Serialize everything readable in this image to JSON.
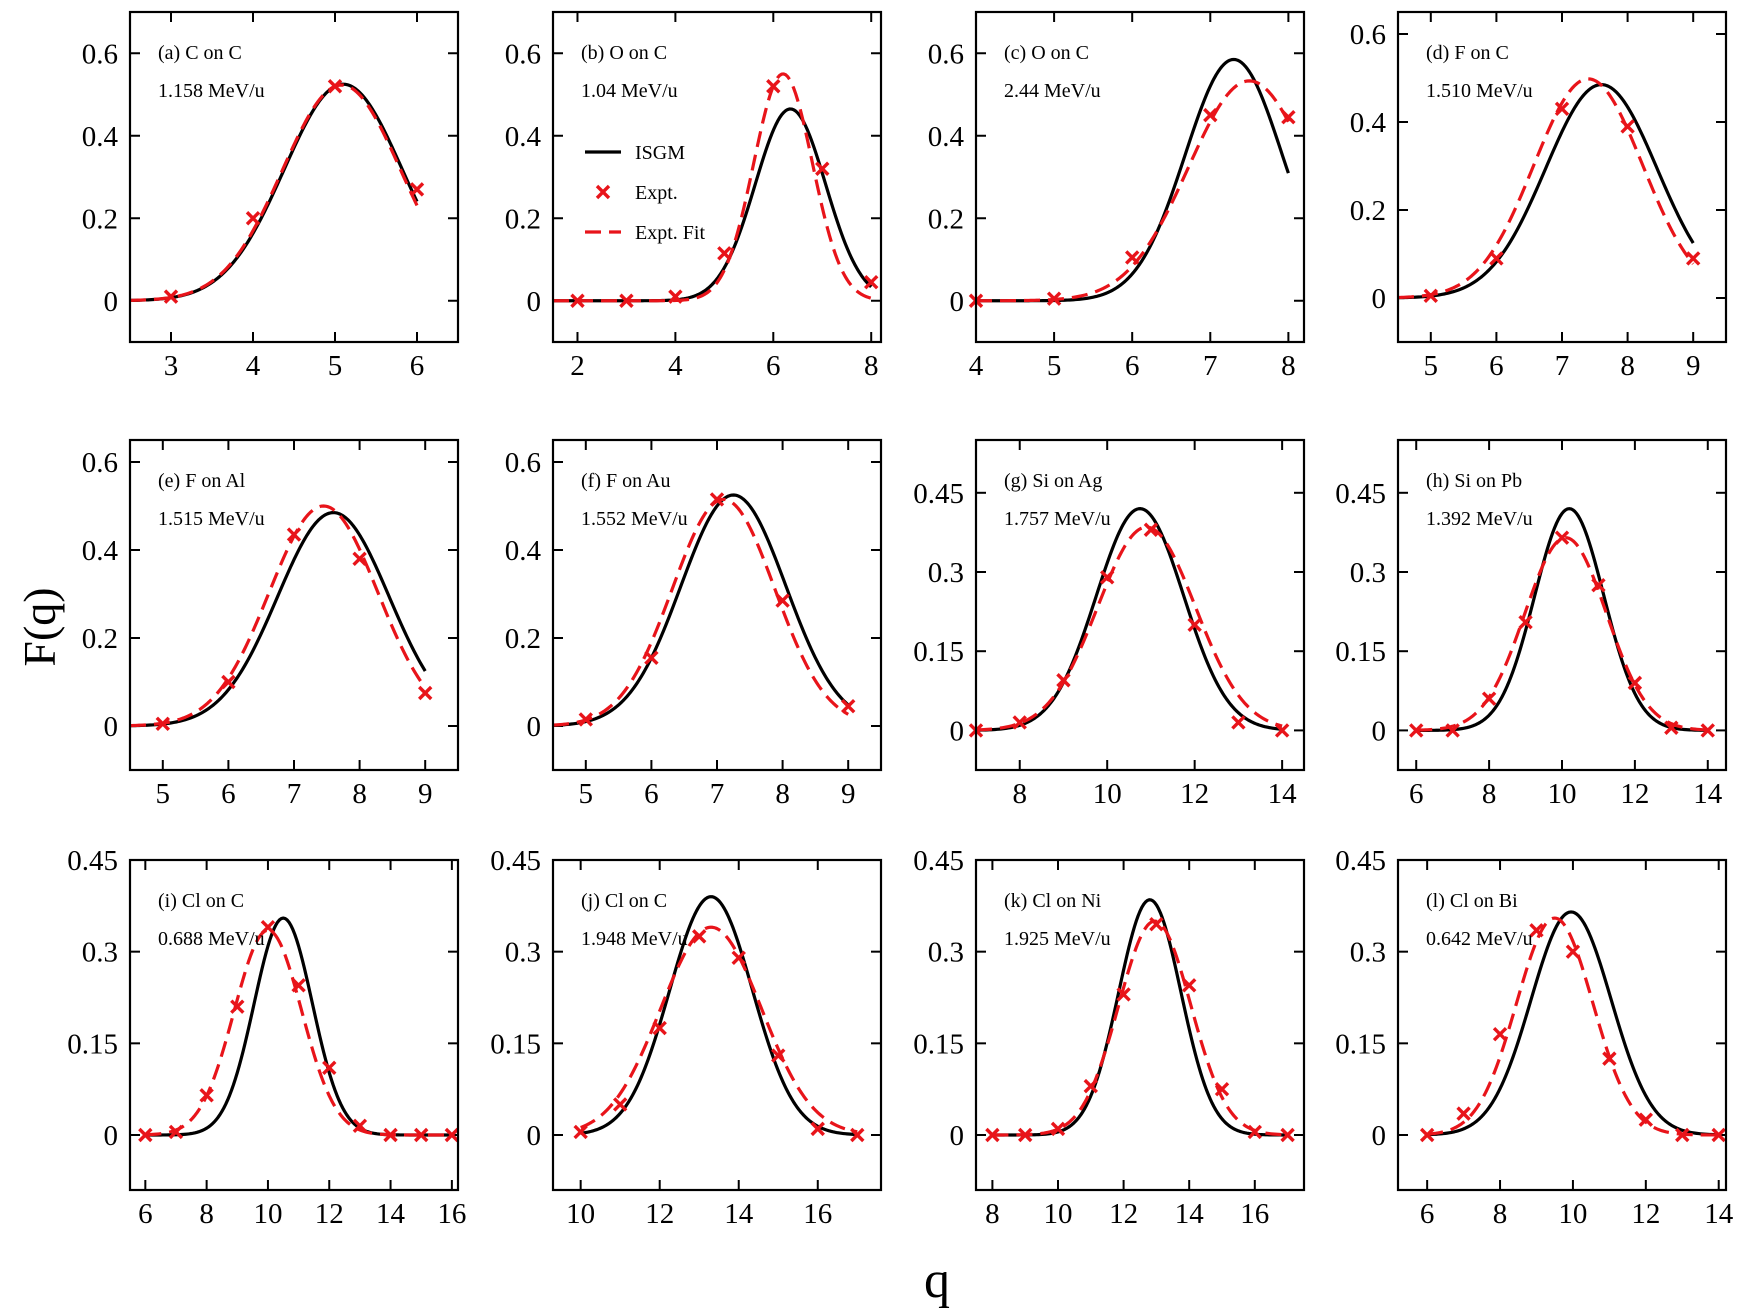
{
  "figure": {
    "ylabel": "F(q)",
    "xlabel": "q",
    "legend": {
      "isgm": "ISGM",
      "expt": "Expt.",
      "fit": "Expt. Fit"
    },
    "colors": {
      "isgm": "#000000",
      "expt": "#e8141a",
      "fit": "#e8141a"
    }
  },
  "chart_data": [
    {
      "type": "line",
      "id": "a",
      "title": "(a) C on C",
      "subtitle": "1.158 MeV/u",
      "xlim": [
        2.5,
        6.5
      ],
      "ylim": [
        -0.1,
        0.7
      ],
      "xticks": [
        3,
        4,
        5,
        6
      ],
      "yticks": [
        0,
        0.2,
        0.4,
        0.6
      ],
      "ytick_labels": [
        "0",
        "0.2",
        "0.4",
        "0.6"
      ],
      "isgm": {
        "mu": 5.1,
        "sigma": 0.72,
        "amp": 0.525,
        "x_range": [
          2.5,
          6.0
        ]
      },
      "fit": {
        "mu": 5.08,
        "sigma": 0.72,
        "amp": 0.523,
        "x_range": [
          2.5,
          6.0
        ]
      },
      "expt": {
        "x": [
          3,
          4,
          5,
          6
        ],
        "y": [
          0.01,
          0.2,
          0.52,
          0.27
        ]
      }
    },
    {
      "type": "line",
      "id": "b",
      "title": "(b) O on C",
      "subtitle": "1.04 MeV/u",
      "legend": true,
      "xlim": [
        1.5,
        8.2
      ],
      "ylim": [
        -0.1,
        0.7
      ],
      "xticks": [
        2,
        4,
        6,
        8
      ],
      "yticks": [
        0,
        0.2,
        0.4,
        0.6
      ],
      "ytick_labels": [
        "0",
        "0.2",
        "0.4",
        "0.6"
      ],
      "isgm": {
        "mu": 6.35,
        "sigma": 0.72,
        "amp": 0.465,
        "x_range": [
          1.5,
          8.0
        ]
      },
      "fit": {
        "mu": 6.2,
        "sigma": 0.6,
        "amp": 0.55,
        "x_range": [
          1.5,
          8.0
        ]
      },
      "expt": {
        "x": [
          2,
          3,
          4,
          5,
          6,
          7,
          8
        ],
        "y": [
          0,
          0,
          0.01,
          0.115,
          0.52,
          0.32,
          0.045
        ]
      }
    },
    {
      "type": "line",
      "id": "c",
      "title": "(c) O on C",
      "subtitle": "2.44 MeV/u",
      "xlim": [
        4,
        8.2
      ],
      "ylim": [
        -0.1,
        0.7
      ],
      "xticks": [
        4,
        5,
        6,
        7,
        8
      ],
      "yticks": [
        0,
        0.2,
        0.4,
        0.6
      ],
      "ytick_labels": [
        "0",
        "0.2",
        "0.4",
        "0.6"
      ],
      "isgm": {
        "mu": 7.3,
        "sigma": 0.62,
        "amp": 0.585,
        "x_range": [
          4,
          8.0
        ]
      },
      "fit": {
        "mu": 7.5,
        "sigma": 0.78,
        "amp": 0.533,
        "x_range": [
          4,
          8.0
        ]
      },
      "expt": {
        "x": [
          4,
          5,
          6,
          7,
          8
        ],
        "y": [
          0,
          0.005,
          0.105,
          0.45,
          0.445
        ]
      }
    },
    {
      "type": "line",
      "id": "d",
      "title": "(d) F on C",
      "subtitle": "1.510 MeV/u",
      "xlim": [
        4.5,
        9.5
      ],
      "ylim": [
        -0.1,
        0.65
      ],
      "xticks": [
        5,
        6,
        7,
        8,
        9
      ],
      "yticks": [
        0,
        0.2,
        0.4,
        0.6
      ],
      "ytick_labels": [
        "0",
        "0.2",
        "0.4",
        "0.6"
      ],
      "isgm": {
        "mu": 7.6,
        "sigma": 0.85,
        "amp": 0.485,
        "x_range": [
          4.5,
          9.0
        ]
      },
      "fit": {
        "mu": 7.4,
        "sigma": 0.83,
        "amp": 0.498,
        "x_range": [
          4.5,
          9.0
        ]
      },
      "expt": {
        "x": [
          5,
          6,
          7,
          8,
          9
        ],
        "y": [
          0.005,
          0.09,
          0.43,
          0.39,
          0.09
        ]
      }
    },
    {
      "type": "line",
      "id": "e",
      "title": "(e) F on Al",
      "subtitle": "1.515 MeV/u",
      "xlim": [
        4.5,
        9.5
      ],
      "ylim": [
        -0.1,
        0.65
      ],
      "xticks": [
        5,
        6,
        7,
        8,
        9
      ],
      "yticks": [
        0,
        0.2,
        0.4,
        0.6
      ],
      "ytick_labels": [
        "0",
        "0.2",
        "0.4",
        "0.6"
      ],
      "isgm": {
        "mu": 7.6,
        "sigma": 0.85,
        "amp": 0.485,
        "x_range": [
          4.5,
          9.0
        ]
      },
      "fit": {
        "mu": 7.45,
        "sigma": 0.83,
        "amp": 0.5,
        "x_range": [
          4.5,
          9.0
        ]
      },
      "expt": {
        "x": [
          5,
          6,
          7,
          8,
          9
        ],
        "y": [
          0.005,
          0.1,
          0.435,
          0.38,
          0.075
        ]
      }
    },
    {
      "type": "line",
      "id": "f",
      "title": "(f) F on Au",
      "subtitle": "1.552 MeV/u",
      "xlim": [
        4.5,
        9.5
      ],
      "ylim": [
        -0.1,
        0.65
      ],
      "xticks": [
        5,
        6,
        7,
        8,
        9
      ],
      "yticks": [
        0,
        0.2,
        0.4,
        0.6
      ],
      "ytick_labels": [
        "0",
        "0.2",
        "0.4",
        "0.6"
      ],
      "isgm": {
        "mu": 7.25,
        "sigma": 0.8,
        "amp": 0.525,
        "x_range": [
          4.5,
          9.0
        ]
      },
      "fit": {
        "mu": 7.1,
        "sigma": 0.78,
        "amp": 0.515,
        "x_range": [
          4.5,
          9.0
        ]
      },
      "expt": {
        "x": [
          5,
          6,
          7,
          8,
          9
        ],
        "y": [
          0.015,
          0.155,
          0.515,
          0.285,
          0.045
        ]
      }
    },
    {
      "type": "line",
      "id": "g",
      "title": "(g) Si on Ag",
      "subtitle": "1.757 MeV/u",
      "xlim": [
        7,
        14.5
      ],
      "ylim": [
        -0.075,
        0.55
      ],
      "xticks": [
        8,
        10,
        12,
        14
      ],
      "yticks": [
        0,
        0.15,
        0.3,
        0.45
      ],
      "ytick_labels": [
        "0",
        "0.15",
        "0.3",
        "0.45"
      ],
      "isgm": {
        "mu": 10.75,
        "sigma": 1.0,
        "amp": 0.42,
        "x_range": [
          7,
          14
        ]
      },
      "fit": {
        "mu": 10.9,
        "sigma": 1.12,
        "amp": 0.385,
        "x_range": [
          7,
          14
        ]
      },
      "expt": {
        "x": [
          7,
          8,
          9,
          10,
          11,
          12,
          13,
          14
        ],
        "y": [
          0,
          0.015,
          0.095,
          0.29,
          0.38,
          0.2,
          0.015,
          0
        ]
      }
    },
    {
      "type": "line",
      "id": "h",
      "title": "(h) Si on Pb",
      "subtitle": "1.392 MeV/u",
      "xlim": [
        5.5,
        14.5
      ],
      "ylim": [
        -0.075,
        0.55
      ],
      "xticks": [
        6,
        8,
        10,
        12,
        14
      ],
      "yticks": [
        0,
        0.15,
        0.3,
        0.45
      ],
      "ytick_labels": [
        "0",
        "0.15",
        "0.3",
        "0.45"
      ],
      "isgm": {
        "mu": 10.2,
        "sigma": 0.95,
        "amp": 0.42,
        "x_range": [
          6,
          14
        ]
      },
      "fit": {
        "mu": 10.1,
        "sigma": 1.12,
        "amp": 0.365,
        "x_range": [
          6,
          14
        ]
      },
      "expt": {
        "x": [
          6,
          7,
          8,
          9,
          10,
          11,
          12,
          13,
          14
        ],
        "y": [
          0,
          0,
          0.06,
          0.205,
          0.365,
          0.275,
          0.09,
          0.005,
          0
        ]
      }
    },
    {
      "type": "line",
      "id": "i",
      "title": "(i) Cl on C",
      "subtitle": "0.688 MeV/u",
      "xlim": [
        5.5,
        16.2
      ],
      "ylim": [
        -0.09,
        0.45
      ],
      "xticks": [
        6,
        8,
        10,
        12,
        14,
        16
      ],
      "yticks": [
        0,
        0.15,
        0.3,
        0.45
      ],
      "ytick_labels": [
        "0",
        "0.15",
        "0.3",
        "0.45"
      ],
      "isgm": {
        "mu": 10.5,
        "sigma": 0.95,
        "amp": 0.355,
        "x_range": [
          6,
          16
        ]
      },
      "fit": {
        "mu": 10.0,
        "sigma": 1.1,
        "amp": 0.335,
        "x_range": [
          6,
          16
        ]
      },
      "expt": {
        "x": [
          6,
          7,
          8,
          9,
          10,
          11,
          12,
          13,
          14,
          15,
          16
        ],
        "y": [
          0,
          0.005,
          0.065,
          0.21,
          0.34,
          0.245,
          0.11,
          0.015,
          0,
          0,
          0
        ]
      }
    },
    {
      "type": "line",
      "id": "j",
      "title": "(j) Cl on C",
      "subtitle": "1.948 MeV/u",
      "xlim": [
        9.3,
        17.6
      ],
      "ylim": [
        -0.09,
        0.45
      ],
      "xticks": [
        10,
        12,
        14,
        16
      ],
      "yticks": [
        0,
        0.15,
        0.3,
        0.45
      ],
      "ytick_labels": [
        "0",
        "0.15",
        "0.3",
        "0.45"
      ],
      "isgm": {
        "mu": 13.3,
        "sigma": 1.05,
        "amp": 0.39,
        "x_range": [
          10,
          17
        ]
      },
      "fit": {
        "mu": 13.3,
        "sigma": 1.28,
        "amp": 0.34,
        "x_range": [
          10,
          17
        ]
      },
      "expt": {
        "x": [
          10,
          11,
          12,
          13,
          14,
          15,
          16,
          17
        ],
        "y": [
          0.005,
          0.05,
          0.175,
          0.325,
          0.29,
          0.13,
          0.01,
          0
        ]
      }
    },
    {
      "type": "line",
      "id": "k",
      "title": "(k) Cl on Ni",
      "subtitle": "1.925 MeV/u",
      "xlim": [
        7.5,
        17.5
      ],
      "ylim": [
        -0.09,
        0.45
      ],
      "xticks": [
        8,
        10,
        12,
        14,
        16
      ],
      "yticks": [
        0,
        0.15,
        0.3,
        0.45
      ],
      "ytick_labels": [
        "0",
        "0.15",
        "0.3",
        "0.45"
      ],
      "isgm": {
        "mu": 12.8,
        "sigma": 0.95,
        "amp": 0.385,
        "x_range": [
          8,
          17
        ]
      },
      "fit": {
        "mu": 12.95,
        "sigma": 1.1,
        "amp": 0.35,
        "x_range": [
          8,
          17
        ]
      },
      "expt": {
        "x": [
          8,
          9,
          10,
          11,
          12,
          13,
          14,
          15,
          16,
          17
        ],
        "y": [
          0,
          0,
          0.01,
          0.08,
          0.23,
          0.345,
          0.245,
          0.075,
          0.005,
          0
        ]
      }
    },
    {
      "type": "line",
      "id": "l",
      "title": "(l) Cl on Bi",
      "subtitle": "0.642 MeV/u",
      "xlim": [
        5.2,
        14.2
      ],
      "ylim": [
        -0.09,
        0.45
      ],
      "xticks": [
        6,
        8,
        10,
        12,
        14
      ],
      "yticks": [
        0,
        0.15,
        0.3,
        0.45
      ],
      "ytick_labels": [
        "0",
        "0.15",
        "0.3",
        "0.45"
      ],
      "isgm": {
        "mu": 9.95,
        "sigma": 1.1,
        "amp": 0.365,
        "x_range": [
          6,
          14
        ]
      },
      "fit": {
        "mu": 9.5,
        "sigma": 1.05,
        "amp": 0.355,
        "x_range": [
          6,
          14
        ]
      },
      "expt": {
        "x": [
          6,
          7,
          8,
          9,
          10,
          11,
          12,
          13,
          14
        ],
        "y": [
          0,
          0.035,
          0.165,
          0.335,
          0.3,
          0.125,
          0.025,
          0,
          0
        ]
      }
    }
  ]
}
